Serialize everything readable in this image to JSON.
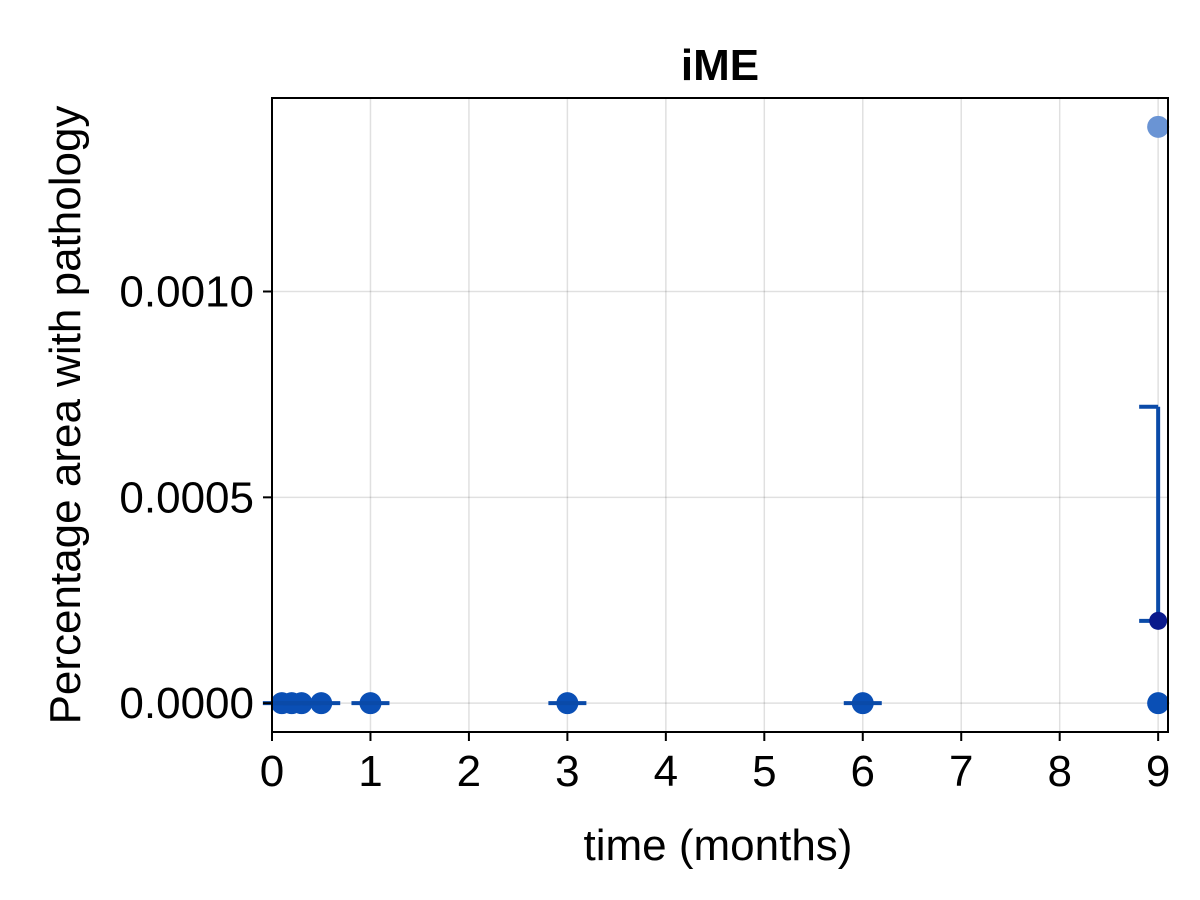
{
  "chart_data": {
    "type": "scatter",
    "title": "iME",
    "xlabel": "time (months)",
    "ylabel": "Percentage area with pathology",
    "xlim": [
      0,
      9.1
    ],
    "ylim": [
      -7e-05,
      0.00147
    ],
    "x_ticks": [
      0,
      1,
      2,
      3,
      4,
      5,
      6,
      7,
      8,
      9
    ],
    "x_tick_labels": [
      "0",
      "1",
      "2",
      "3",
      "4",
      "5",
      "6",
      "7",
      "8",
      "9"
    ],
    "y_ticks": [
      0.0,
      0.0005,
      0.001
    ],
    "y_tick_labels": [
      "0.0000",
      "0.0005",
      "0.0010"
    ],
    "grid": true,
    "legend": "none",
    "colors": {
      "points": "#0a4fb5",
      "outlier_point": "#6a94d4",
      "mean_marker": "#0a1a8c",
      "error_bar": "#0a4aa8"
    },
    "series": [
      {
        "kind": "individual_points",
        "points": [
          {
            "x": 0.1,
            "y": 0.0
          },
          {
            "x": 0.2,
            "y": 0.0
          },
          {
            "x": 0.3,
            "y": 0.0
          },
          {
            "x": 0.5,
            "y": 0.0
          },
          {
            "x": 1,
            "y": 0.0
          },
          {
            "x": 3,
            "y": 0.0
          },
          {
            "x": 6,
            "y": 0.0
          },
          {
            "x": 9,
            "y": 0.0
          },
          {
            "x": 9,
            "y": 0.0014,
            "style": "light"
          }
        ]
      },
      {
        "kind": "mean_with_error",
        "points": [
          {
            "x": 0.1,
            "mean": 0.0,
            "low": 0.0,
            "high": 0.0
          },
          {
            "x": 0.2,
            "mean": 0.0,
            "low": 0.0,
            "high": 0.0
          },
          {
            "x": 0.3,
            "mean": 0.0,
            "low": 0.0,
            "high": 0.0
          },
          {
            "x": 0.5,
            "mean": 0.0,
            "low": 0.0,
            "high": 0.0
          },
          {
            "x": 1,
            "mean": 0.0,
            "low": 0.0,
            "high": 0.0
          },
          {
            "x": 3,
            "mean": 0.0,
            "low": 0.0,
            "high": 0.0
          },
          {
            "x": 6,
            "mean": 0.0,
            "low": 0.0,
            "high": 0.0
          },
          {
            "x": 9,
            "mean": 0.0002,
            "low": 0.0002,
            "high": 0.00072
          }
        ]
      }
    ]
  }
}
